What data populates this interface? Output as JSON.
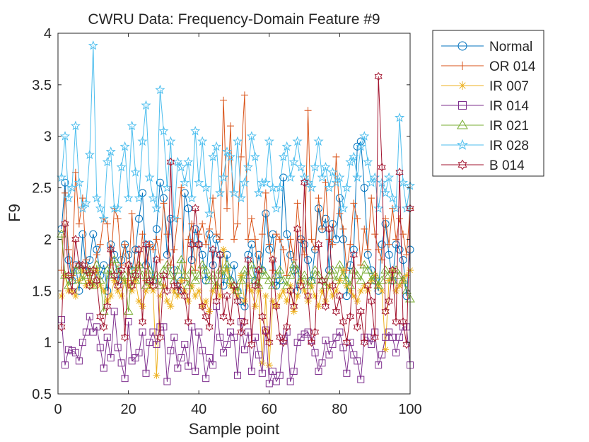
{
  "chart_data": {
    "type": "line",
    "title": "CWRU Data: Frequency-Domain Feature #9",
    "xlabel": "Sample point",
    "ylabel": "F9",
    "xlim": [
      0,
      100
    ],
    "ylim": [
      0.5,
      4
    ],
    "xticks": [
      0,
      20,
      40,
      60,
      80,
      100
    ],
    "yticks": [
      0.5,
      1,
      1.5,
      2,
      2.5,
      3,
      3.5,
      4
    ],
    "xtick_labels": [
      "0",
      "20",
      "40",
      "60",
      "80",
      "100"
    ],
    "ytick_labels": [
      "0.5",
      "1",
      "1.5",
      "2",
      "2.5",
      "3",
      "3.5",
      "4"
    ],
    "grid": false,
    "legend_position": "outside-top-right",
    "x": [
      1,
      2,
      3,
      4,
      5,
      6,
      7,
      8,
      9,
      10,
      11,
      12,
      13,
      14,
      15,
      16,
      17,
      18,
      19,
      20,
      21,
      22,
      23,
      24,
      25,
      26,
      27,
      28,
      29,
      30,
      31,
      32,
      33,
      34,
      35,
      36,
      37,
      38,
      39,
      40,
      41,
      42,
      43,
      44,
      45,
      46,
      47,
      48,
      49,
      50,
      51,
      52,
      53,
      54,
      55,
      56,
      57,
      58,
      59,
      60,
      61,
      62,
      63,
      64,
      65,
      66,
      67,
      68,
      69,
      70,
      71,
      72,
      73,
      74,
      75,
      76,
      77,
      78,
      79,
      80,
      81,
      82,
      83,
      84,
      85,
      86,
      87,
      88,
      89,
      90,
      91,
      92,
      93,
      94,
      95,
      96,
      97,
      98,
      99,
      100
    ],
    "series": [
      {
        "name": "Normal",
        "color": "#0072BD",
        "marker": "circle",
        "values": [
          2.1,
          2.55,
          1.8,
          1.6,
          1.75,
          1.5,
          2.05,
          1.7,
          1.8,
          2.05,
          1.9,
          1.65,
          1.75,
          1.5,
          1.95,
          1.85,
          1.6,
          1.8,
          1.95,
          1.85,
          1.7,
          1.9,
          2.2,
          2.45,
          1.75,
          1.95,
          1.6,
          2.1,
          2.55,
          2.4,
          1.85,
          2.2,
          1.7,
          1.5,
          1.6,
          2.45,
          2.3,
          1.8,
          2.1,
          1.95,
          1.85,
          1.6,
          2.05,
          1.75,
          2.0,
          1.85,
          1.55,
          1.85,
          1.6,
          1.75,
          1.5,
          1.4,
          1.35,
          1.85,
          1.95,
          1.6,
          1.85,
          1.7,
          2.25,
          1.9,
          2.05,
          1.55,
          1.6,
          2.6,
          2.05,
          1.85,
          1.7,
          1.5,
          2.0,
          1.95,
          1.8,
          1.6,
          1.9,
          2.3,
          2.1,
          2.2,
          1.7,
          2.15,
          2.0,
          2.4,
          2.0,
          1.45,
          1.75,
          1.9,
          2.9,
          2.95,
          2.5,
          1.85,
          1.7,
          1.6,
          1.5,
          1.95,
          2.15,
          1.85,
          1.6,
          1.95,
          1.9,
          1.8,
          1.45,
          1.9
        ]
      },
      {
        "name": "OR 014",
        "color": "#D95319",
        "marker": "plus",
        "values": [
          1.7,
          2.45,
          1.9,
          1.65,
          2.65,
          2.15,
          2.4,
          1.8,
          1.65,
          1.7,
          1.85,
          1.95,
          2.2,
          2.15,
          1.75,
          2.3,
          2.2,
          1.75,
          1.95,
          1.6,
          2.25,
          1.7,
          1.75,
          2.05,
          1.6,
          1.95,
          1.9,
          2.0,
          1.8,
          2.35,
          2.05,
          1.75,
          1.9,
          2.2,
          2.5,
          1.6,
          2.0,
          2.15,
          1.7,
          2.05,
          2.15,
          1.95,
          2.1,
          2.4,
          2.05,
          2.0,
          3.35,
          2.3,
          3.1,
          2.0,
          2.15,
          2.8,
          3.4,
          2.0,
          2.2,
          2.0,
          1.55,
          2.05,
          2.45,
          1.95,
          1.7,
          2.05,
          2.0,
          1.9,
          1.65,
          2.0,
          1.8,
          2.35,
          2.0,
          1.85,
          3.25,
          2.0,
          1.9,
          2.4,
          2.1,
          2.55,
          2.0,
          1.95,
          2.8,
          2.25,
          2.1,
          1.7,
          1.95,
          2.35,
          2.2,
          1.75,
          2.1,
          1.9,
          2.4,
          2.05,
          1.9,
          1.8,
          2.2,
          1.95,
          2.3,
          2.0,
          2.2,
          2.05,
          1.85,
          2.3
        ]
      },
      {
        "name": "IR 007",
        "color": "#EDB120",
        "marker": "asterisk",
        "values": [
          1.45,
          1.65,
          1.5,
          1.5,
          1.45,
          1.6,
          1.7,
          1.55,
          1.6,
          1.55,
          1.7,
          1.55,
          1.5,
          1.4,
          1.45,
          1.6,
          1.5,
          1.45,
          1.6,
          1.55,
          1.5,
          1.6,
          1.4,
          1.35,
          1.5,
          1.55,
          1.5,
          0.68,
          1.45,
          1.55,
          1.4,
          1.35,
          1.5,
          1.45,
          1.6,
          1.5,
          1.4,
          1.55,
          1.45,
          1.5,
          1.35,
          1.4,
          1.3,
          1.5,
          1.55,
          1.45,
          1.9,
          1.7,
          1.55,
          1.5,
          1.45,
          1.65,
          1.4,
          1.55,
          1.5,
          1.35,
          1.5,
          0.8,
          1.45,
          0.78,
          1.4,
          1.35,
          1.45,
          1.5,
          1.4,
          1.55,
          1.3,
          1.45,
          1.6,
          1.5,
          1.4,
          1.55,
          1.45,
          1.35,
          1.5,
          1.4,
          1.55,
          1.45,
          1.5,
          1.6,
          1.7,
          1.55,
          1.5,
          1.45,
          1.4,
          1.5,
          1.55,
          1.5,
          1.6,
          1.65,
          1.55,
          1.5,
          0.93,
          1.6,
          1.7,
          1.5,
          1.55,
          1.6,
          1.65,
          1.7
        ]
      },
      {
        "name": "IR 014",
        "color": "#7E2F8E",
        "marker": "square",
        "values": [
          1.22,
          0.78,
          0.93,
          0.92,
          0.9,
          0.82,
          1.0,
          1.1,
          1.25,
          1.1,
          1.15,
          0.95,
          0.75,
          1.05,
          0.85,
          1.3,
          0.95,
          0.8,
          0.65,
          1.2,
          0.82,
          0.85,
          0.9,
          1.1,
          0.7,
          1.0,
          1.1,
          0.98,
          1.15,
          1.15,
          0.62,
          0.92,
          1.05,
          0.75,
          0.85,
          0.98,
          0.77,
          1.15,
          0.72,
          1.1,
          0.92,
          0.65,
          0.85,
          0.78,
          1.35,
          1.05,
          0.9,
          0.98,
          1.1,
          1.05,
          0.68,
          1.2,
          0.93,
          1.1,
          0.72,
          1.05,
          0.88,
          0.7,
          1.12,
          0.6,
          0.72,
          0.62,
          0.68,
          1.02,
          1.1,
          0.62,
          0.72,
          1.0,
          1.05,
          1.08,
          1.1,
          1.02,
          0.9,
          0.72,
          0.8,
          1.02,
          0.88,
          0.98,
          1.05,
          1.1,
          0.95,
          0.7,
          1.0,
          0.88,
          0.82,
          0.64,
          1.05,
          1.05,
          0.98,
          1.1,
          0.78,
          0.88,
          1.05,
          1.1,
          1.05,
          0.9,
          1.05,
          1.15,
          1.15,
          0.78
        ]
      },
      {
        "name": "IR 021",
        "color": "#77AC30",
        "marker": "triangle",
        "values": [
          2.05,
          1.65,
          1.55,
          1.6,
          1.7,
          1.75,
          1.6,
          1.65,
          1.7,
          1.55,
          1.75,
          1.6,
          1.3,
          1.7,
          1.65,
          1.8,
          1.7,
          1.6,
          1.65,
          1.3,
          1.7,
          1.6,
          1.75,
          1.65,
          1.55,
          1.7,
          1.6,
          1.65,
          1.55,
          1.7,
          1.75,
          1.65,
          1.6,
          1.7,
          1.8,
          1.65,
          1.55,
          1.7,
          1.6,
          1.65,
          1.75,
          1.7,
          1.6,
          1.65,
          1.55,
          1.7,
          1.65,
          1.75,
          1.6,
          1.55,
          1.5,
          1.6,
          1.7,
          1.65,
          1.75,
          1.6,
          1.55,
          1.7,
          1.65,
          1.6,
          1.55,
          1.65,
          1.7,
          1.6,
          1.55,
          1.65,
          1.75,
          1.7,
          1.6,
          1.65,
          1.55,
          1.6,
          1.7,
          1.65,
          1.6,
          1.55,
          1.65,
          1.7,
          1.6,
          1.75,
          1.65,
          1.6,
          1.55,
          1.7,
          1.65,
          1.6,
          1.75,
          1.7,
          1.6,
          1.65,
          1.55,
          1.6,
          1.7,
          1.65,
          1.6,
          1.7,
          1.65,
          1.6,
          1.5,
          1.42
        ]
      },
      {
        "name": "IR 028",
        "color": "#4DBEEE",
        "marker": "pentagram",
        "values": [
          2.6,
          3.0,
          2.4,
          2.5,
          3.1,
          2.55,
          2.3,
          2.35,
          2.82,
          3.88,
          2.4,
          2.3,
          2.2,
          2.75,
          2.85,
          2.3,
          2.3,
          2.7,
          2.9,
          2.4,
          3.1,
          2.65,
          2.4,
          2.95,
          3.3,
          2.6,
          2.4,
          2.3,
          3.45,
          3.05,
          2.5,
          2.95,
          2.2,
          2.75,
          2.7,
          2.55,
          2.75,
          2.4,
          3.05,
          2.55,
          2.95,
          2.5,
          2.25,
          2.8,
          2.9,
          2.45,
          2.6,
          2.85,
          2.8,
          2.45,
          2.95,
          2.4,
          2.55,
          2.7,
          3.0,
          2.8,
          2.45,
          2.55,
          2.55,
          2.95,
          2.5,
          2.3,
          2.5,
          2.8,
          2.9,
          2.6,
          2.75,
          2.95,
          2.7,
          2.6,
          2.55,
          2.5,
          2.7,
          2.95,
          2.6,
          2.7,
          2.5,
          2.65,
          2.55,
          2.6,
          2.3,
          2.5,
          2.75,
          2.8,
          2.6,
          2.9,
          3.0,
          2.75,
          2.55,
          2.6,
          2.3,
          2.55,
          2.45,
          2.6,
          2.4,
          2.3,
          3.18,
          2.55,
          2.3,
          2.52
        ]
      },
      {
        "name": "B 014",
        "color": "#A2142F",
        "marker": "hexagram",
        "values": [
          1.15,
          2.15,
          1.65,
          1.5,
          2.0,
          1.75,
          1.75,
          1.7,
          1.55,
          1.7,
          1.6,
          1.25,
          1.15,
          1.35,
          1.9,
          1.65,
          1.55,
          1.7,
          1.05,
          1.75,
          1.55,
          1.65,
          1.9,
          1.2,
          1.95,
          1.6,
          1.55,
          1.8,
          1.05,
          1.65,
          1.5,
          2.75,
          1.55,
          1.55,
          1.5,
          1.45,
          1.2,
          1.95,
          2.3,
          1.95,
          1.35,
          1.25,
          1.15,
          1.9,
          1.4,
          1.85,
          1.25,
          1.45,
          1.2,
          1.55,
          1.4,
          1.1,
          1.2,
          1.8,
          0.98,
          1.55,
          1.7,
          1.25,
          1.1,
          1.0,
          1.8,
          1.35,
          1.05,
          1.0,
          1.15,
          1.5,
          1.35,
          2.1,
          1.55,
          2.55,
          1.45,
          1.0,
          1.1,
          1.95,
          1.6,
          1.35,
          2.1,
          1.55,
          1.3,
          1.45,
          1.2,
          1.0,
          1.25,
          1.85,
          1.15,
          1.3,
          1.0,
          1.55,
          1.4,
          1.05,
          3.58,
          2.7,
          1.3,
          1.4,
          1.7,
          1.2,
          2.65,
          1.2,
          0.98,
          2.3
        ]
      }
    ]
  }
}
